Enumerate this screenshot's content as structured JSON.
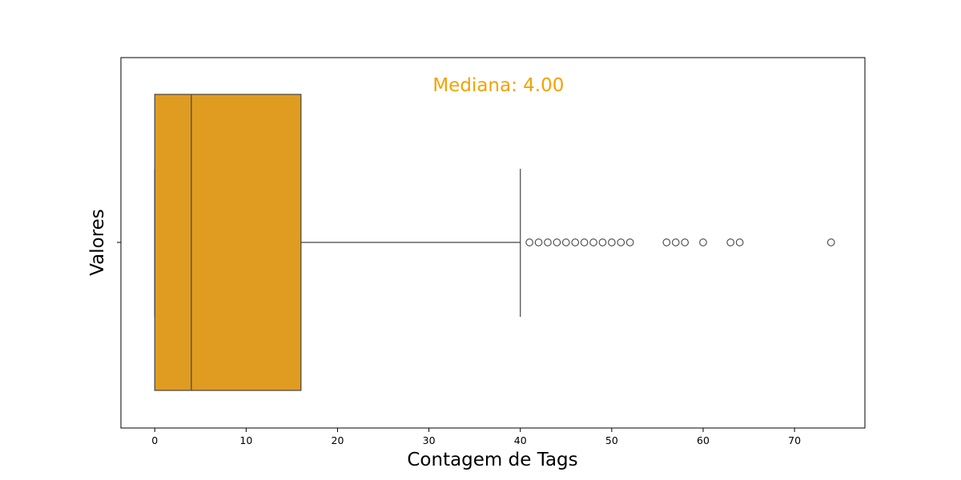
{
  "chart_data": {
    "type": "boxplot",
    "orientation": "horizontal",
    "title": "",
    "xlabel": "Contagem de Tags",
    "ylabel": "Valores",
    "xlim": [
      -3.7,
      77.7
    ],
    "x_ticks": [
      0,
      10,
      20,
      30,
      40,
      50,
      60,
      70
    ],
    "grid": false,
    "box": {
      "whisker_low": 0,
      "q1": 0,
      "median": 4,
      "q3": 16,
      "whisker_high": 40,
      "outliers": [
        41,
        42,
        43,
        44,
        45,
        46,
        47,
        48,
        49,
        50,
        51,
        52,
        56,
        57,
        58,
        60,
        63,
        64,
        74
      ]
    },
    "annotation": {
      "text": "Mediana: 4.00",
      "x": 37.6
    },
    "colors": {
      "box_fill": "#e09c20",
      "line": "#444444",
      "annotation": "#f5a100"
    }
  }
}
